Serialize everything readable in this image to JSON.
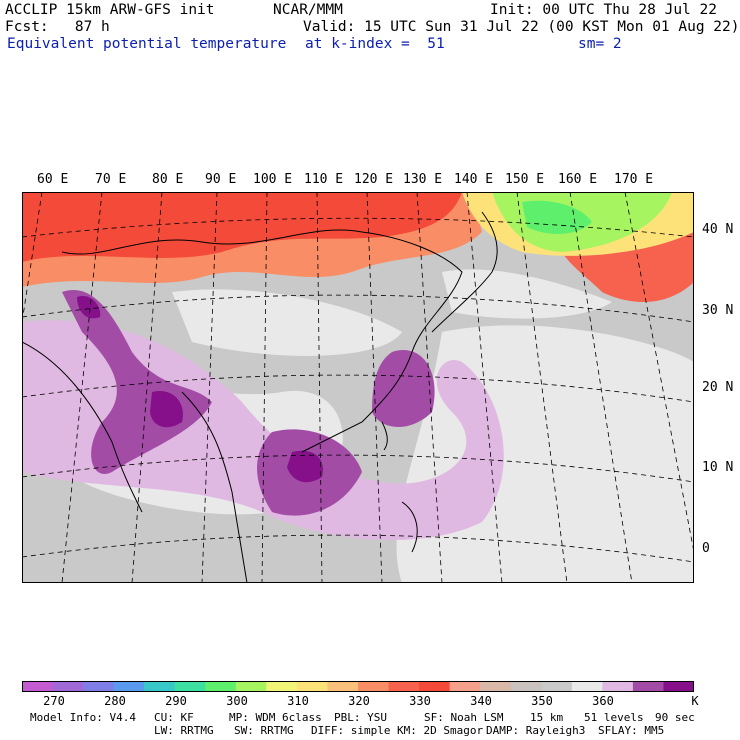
{
  "header": {
    "model_title": "ACCLIP 15km ARW-GFS init",
    "institution": "NCAR/MMM",
    "init_time": "Init: 00 UTC Thu 28 Jul 22",
    "forecast_hour": "Fcst:   87 h",
    "valid_time": "Valid: 15 UTC Sun 31 Jul 22 (00 KST Mon 01 Aug 22)",
    "field_name": "Equivalent potential temperature",
    "level": "at k-index =  51",
    "smoothing": "sm= 2"
  },
  "map": {
    "longitude_labels": [
      "60 E",
      "70 E",
      "80 E",
      "90 E",
      "100 E",
      "110 E",
      "120 E",
      "130 E",
      "140 E",
      "150 E",
      "160 E",
      "170 E"
    ],
    "latitude_labels": [
      "40 N",
      "30 N",
      "20 N",
      "10 N",
      "0"
    ]
  },
  "colorbar": {
    "unit": "K",
    "tick_labels": [
      "270",
      "280",
      "290",
      "300",
      "310",
      "320",
      "330",
      "340",
      "350",
      "360"
    ],
    "colors": [
      "#c45bd0",
      "#a168d8",
      "#7f7ee6",
      "#5a9bef",
      "#38c8c8",
      "#3ee0a2",
      "#5eef6c",
      "#a6f560",
      "#f0f578",
      "#fde27a",
      "#fbc07a",
      "#f98e66",
      "#f6624e",
      "#f44a3a",
      "#f5a08a",
      "#d9b8a8",
      "#c9c2bf",
      "#c9c9c9",
      "#e9e9e9",
      "#e0b9e2",
      "#a24ca6",
      "#85108a"
    ]
  },
  "model_info": {
    "line1": [
      "Model Info: V4.4",
      "CU: KF",
      "MP: WDM 6class",
      "PBL: YSU",
      "SF: Noah LSM",
      "15 km",
      "51 levels",
      "90 sec"
    ],
    "line2": [
      "LW: RRTMG",
      "SW: RRTMG",
      "DIFF: simple",
      "KM: 2D Smagor",
      "DAMP: Rayleigh3",
      "SFLAY: MM5"
    ]
  }
}
